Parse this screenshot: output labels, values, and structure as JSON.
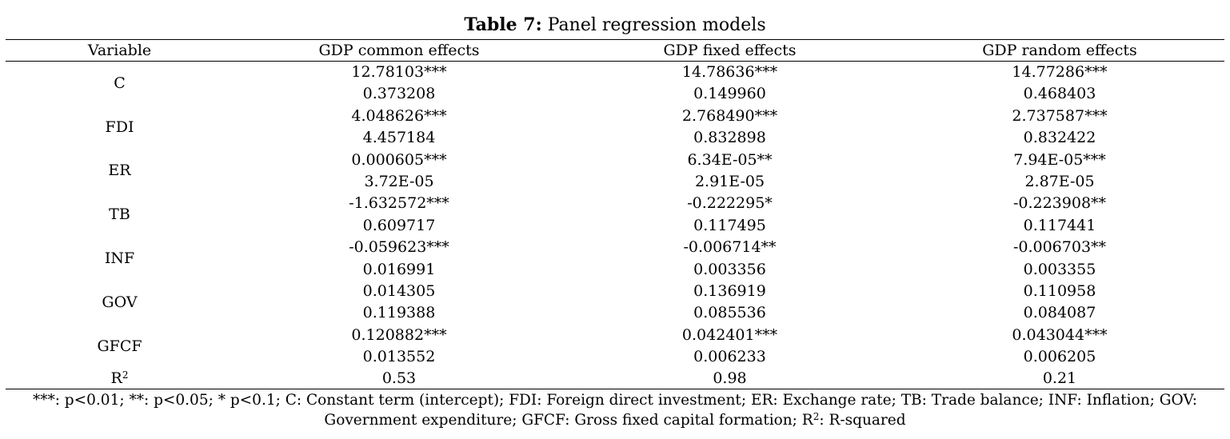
{
  "caption": {
    "label": "Table 7:",
    "text": " Panel regression models"
  },
  "headers": [
    "Variable",
    "GDP common effects",
    "GDP fixed effects",
    "GDP random effects"
  ],
  "rows": [
    {
      "variable": "C",
      "coef": [
        "12.78103***",
        "14.78636***",
        "14.77286***"
      ],
      "se": [
        "0.373208",
        "0.149960",
        "0.468403"
      ]
    },
    {
      "variable": "FDI",
      "coef": [
        "4.048626***",
        "2.768490***",
        "2.737587***"
      ],
      "se": [
        "4.457184",
        "0.832898",
        "0.832422"
      ]
    },
    {
      "variable": "ER",
      "coef": [
        "0.000605***",
        "6.34E-05**",
        "7.94E-05***"
      ],
      "se": [
        "3.72E-05",
        "2.91E-05",
        "2.87E-05"
      ]
    },
    {
      "variable": "TB",
      "coef": [
        "-1.632572***",
        "-0.222295*",
        "-0.223908**"
      ],
      "se": [
        "0.609717",
        "0.117495",
        "0.117441"
      ]
    },
    {
      "variable": "INF",
      "coef": [
        "-0.059623***",
        "-0.006714**",
        "-0.006703**"
      ],
      "se": [
        "0.016991",
        "0.003356",
        "0.003355"
      ]
    },
    {
      "variable": "GOV",
      "coef": [
        "0.014305",
        "0.136919",
        "0.110958"
      ],
      "se": [
        "0.119388",
        "0.085536",
        "0.084087"
      ]
    },
    {
      "variable": "GFCF",
      "coef": [
        "0.120882***",
        "0.042401***",
        "0.043044***"
      ],
      "se": [
        "0.013552",
        "0.006233",
        "0.006205"
      ]
    }
  ],
  "r_squared": {
    "label_base": "R",
    "label_sup": "2",
    "values": [
      "0.53",
      "0.98",
      "0.21"
    ]
  },
  "note": {
    "line1": "***: p<0.01; **: p<0.05; * p<0.1; C: Constant term (intercept); FDI: Foreign direct investment; ER: Exchange rate; TB: Trade balance; INF: Inflation; GOV:",
    "line2_before": "Government expenditure; GFCF: Gross fixed capital formation; R",
    "line2_sup": "2",
    "line2_after": ": R-squared"
  }
}
